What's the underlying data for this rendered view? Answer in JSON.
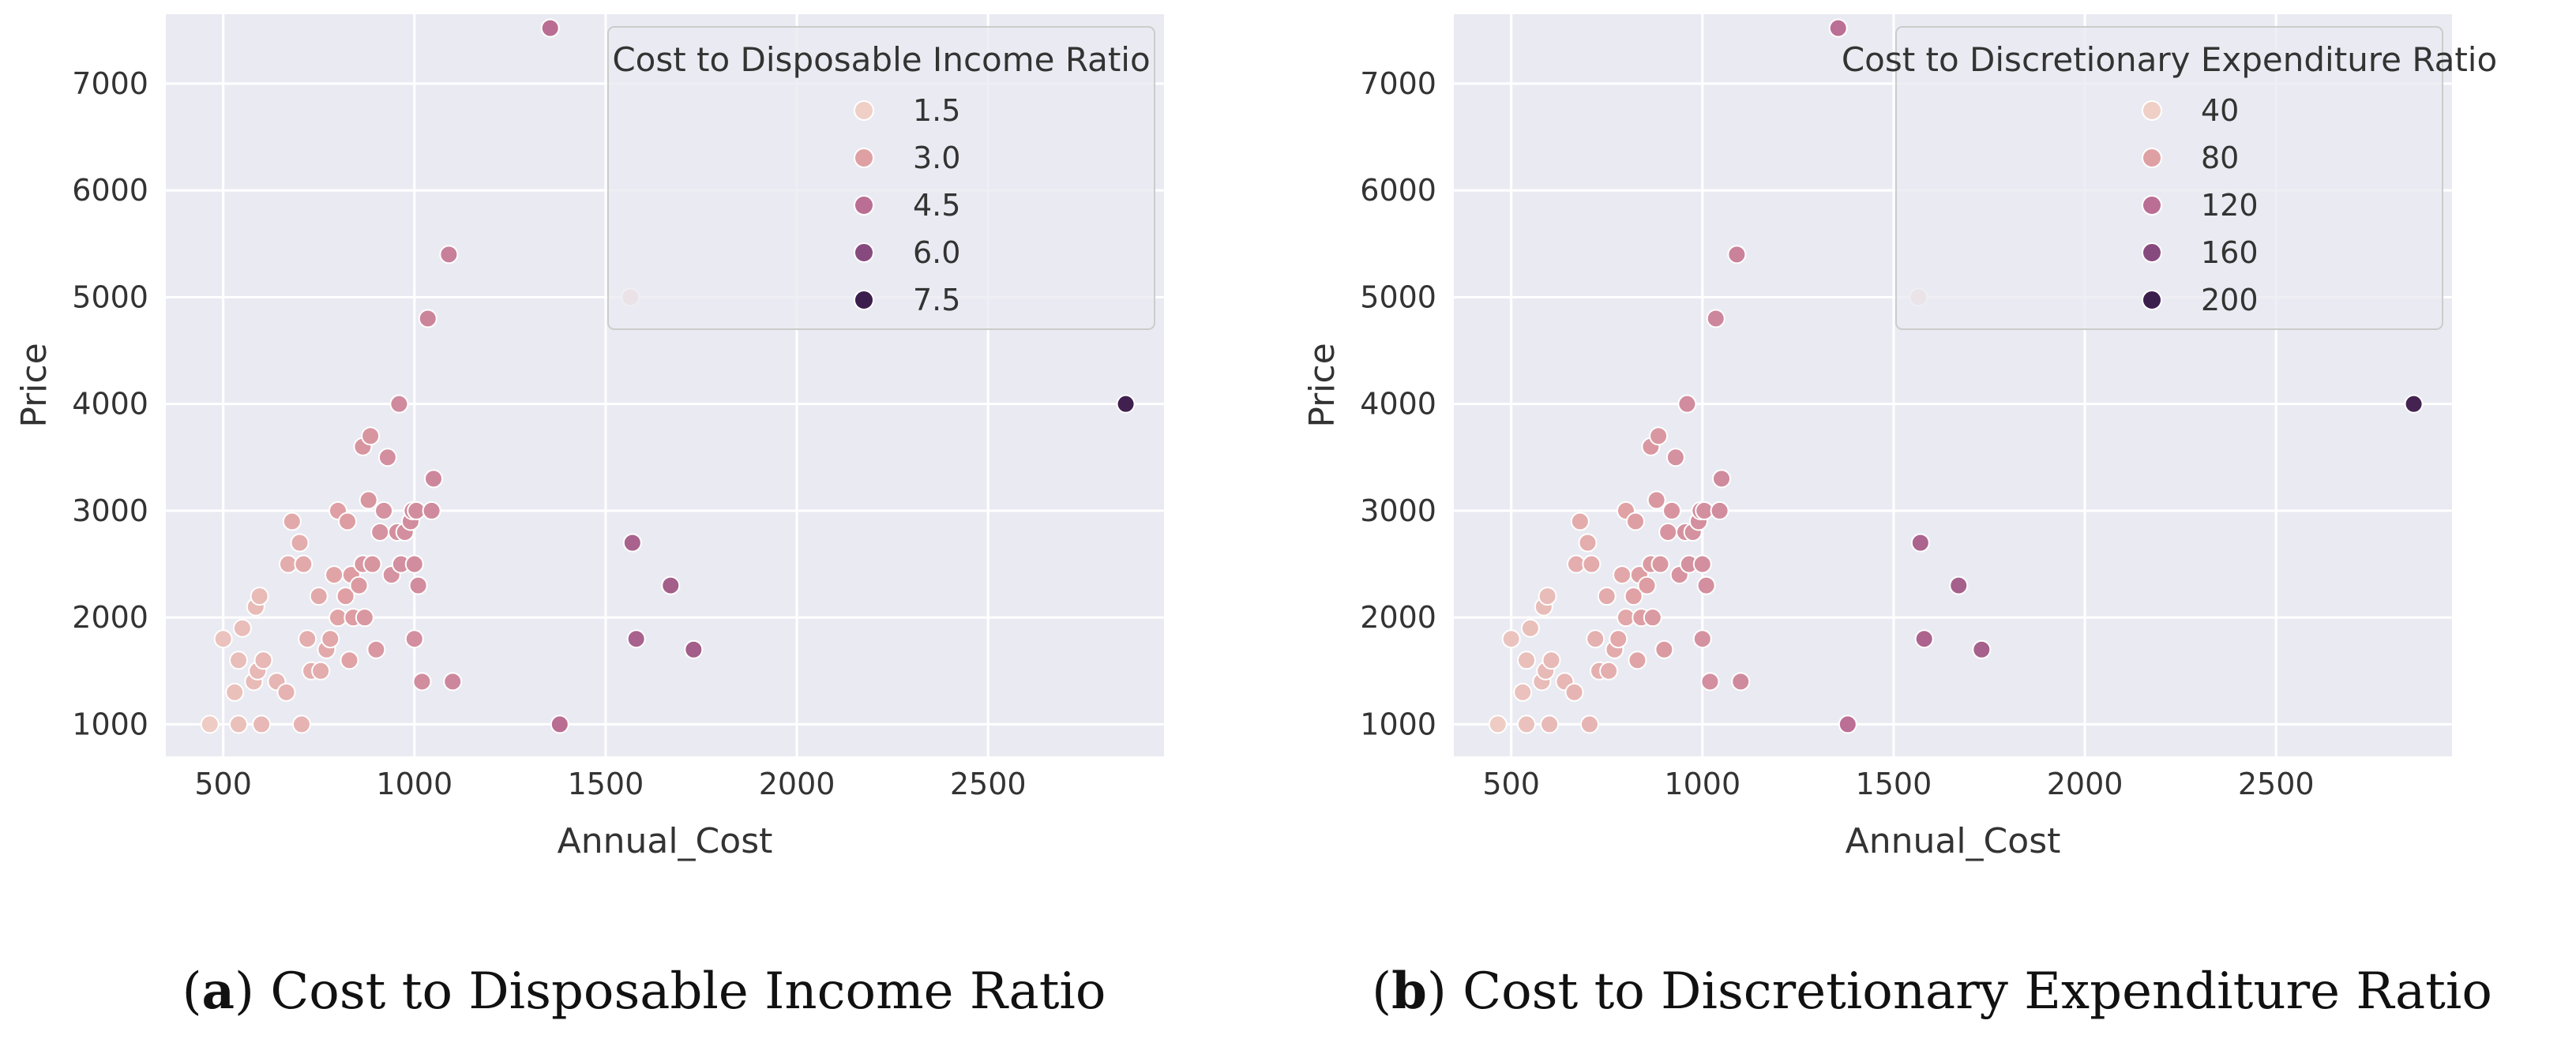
{
  "chart_data": [
    {
      "type": "scatter",
      "panel": "a",
      "caption_letter": "a",
      "caption_text": "Cost to Disposable Income Ratio",
      "xlabel": "Annual_Cost",
      "ylabel": "Price",
      "xlim": [
        350,
        2960
      ],
      "ylim": [
        700,
        7650
      ],
      "xticks": [
        500,
        1000,
        1500,
        2000,
        2500
      ],
      "yticks": [
        1000,
        2000,
        3000,
        4000,
        5000,
        6000,
        7000
      ],
      "grid": true,
      "legend": {
        "title": "Cost to Disposable Income Ratio",
        "placement": "top-right",
        "entries": [
          {
            "label": "1.5",
            "color": "#efcfc6"
          },
          {
            "label": "3.0",
            "color": "#dfa0a4"
          },
          {
            "label": "4.5",
            "color": "#bb6e94"
          },
          {
            "label": "6.0",
            "color": "#874a7f"
          },
          {
            "label": "7.5",
            "color": "#3c1e4c"
          }
        ]
      },
      "hue_range": [
        0.5,
        8.0
      ],
      "points": [
        {
          "x": 465,
          "y": 1000,
          "c": 0.6
        },
        {
          "x": 500,
          "y": 1800,
          "c": 1.0
        },
        {
          "x": 530,
          "y": 1300,
          "c": 1.1
        },
        {
          "x": 540,
          "y": 1000,
          "c": 1.1
        },
        {
          "x": 540,
          "y": 1600,
          "c": 1.2
        },
        {
          "x": 550,
          "y": 1900,
          "c": 1.2
        },
        {
          "x": 580,
          "y": 1400,
          "c": 1.3
        },
        {
          "x": 585,
          "y": 2100,
          "c": 1.3
        },
        {
          "x": 590,
          "y": 1500,
          "c": 1.4
        },
        {
          "x": 595,
          "y": 2200,
          "c": 1.3
        },
        {
          "x": 600,
          "y": 1000,
          "c": 1.4
        },
        {
          "x": 605,
          "y": 1600,
          "c": 1.4
        },
        {
          "x": 640,
          "y": 1400,
          "c": 1.5
        },
        {
          "x": 665,
          "y": 1300,
          "c": 1.6
        },
        {
          "x": 670,
          "y": 2500,
          "c": 1.9
        },
        {
          "x": 680,
          "y": 2900,
          "c": 2.0
        },
        {
          "x": 700,
          "y": 2700,
          "c": 1.9
        },
        {
          "x": 705,
          "y": 1000,
          "c": 1.6
        },
        {
          "x": 710,
          "y": 2500,
          "c": 2.0
        },
        {
          "x": 720,
          "y": 1800,
          "c": 1.8
        },
        {
          "x": 730,
          "y": 1500,
          "c": 1.8
        },
        {
          "x": 750,
          "y": 2200,
          "c": 2.0
        },
        {
          "x": 755,
          "y": 1500,
          "c": 1.9
        },
        {
          "x": 770,
          "y": 1700,
          "c": 2.0
        },
        {
          "x": 780,
          "y": 1800,
          "c": 2.1
        },
        {
          "x": 790,
          "y": 2400,
          "c": 2.2
        },
        {
          "x": 800,
          "y": 3000,
          "c": 2.4
        },
        {
          "x": 800,
          "y": 2000,
          "c": 2.2
        },
        {
          "x": 820,
          "y": 2200,
          "c": 2.4
        },
        {
          "x": 825,
          "y": 2900,
          "c": 2.5
        },
        {
          "x": 830,
          "y": 1600,
          "c": 2.3
        },
        {
          "x": 835,
          "y": 2400,
          "c": 2.5
        },
        {
          "x": 840,
          "y": 2000,
          "c": 2.5
        },
        {
          "x": 855,
          "y": 2300,
          "c": 2.6
        },
        {
          "x": 865,
          "y": 3600,
          "c": 2.8
        },
        {
          "x": 865,
          "y": 2500,
          "c": 2.7
        },
        {
          "x": 870,
          "y": 2000,
          "c": 2.7
        },
        {
          "x": 880,
          "y": 3100,
          "c": 2.8
        },
        {
          "x": 885,
          "y": 3700,
          "c": 2.8
        },
        {
          "x": 890,
          "y": 2500,
          "c": 2.8
        },
        {
          "x": 900,
          "y": 1700,
          "c": 2.7
        },
        {
          "x": 910,
          "y": 2800,
          "c": 2.9
        },
        {
          "x": 920,
          "y": 3000,
          "c": 2.9
        },
        {
          "x": 930,
          "y": 3500,
          "c": 3.0
        },
        {
          "x": 940,
          "y": 2400,
          "c": 2.9
        },
        {
          "x": 955,
          "y": 2800,
          "c": 3.0
        },
        {
          "x": 960,
          "y": 4000,
          "c": 3.2
        },
        {
          "x": 965,
          "y": 2500,
          "c": 3.0
        },
        {
          "x": 975,
          "y": 2800,
          "c": 3.0
        },
        {
          "x": 990,
          "y": 2900,
          "c": 3.1
        },
        {
          "x": 995,
          "y": 3000,
          "c": 3.1
        },
        {
          "x": 1000,
          "y": 1800,
          "c": 3.0
        },
        {
          "x": 1000,
          "y": 2500,
          "c": 3.1
        },
        {
          "x": 1005,
          "y": 3000,
          "c": 3.1
        },
        {
          "x": 1010,
          "y": 2300,
          "c": 3.1
        },
        {
          "x": 1020,
          "y": 1400,
          "c": 3.1
        },
        {
          "x": 1035,
          "y": 4800,
          "c": 3.4
        },
        {
          "x": 1045,
          "y": 3000,
          "c": 3.2
        },
        {
          "x": 1050,
          "y": 3300,
          "c": 3.3
        },
        {
          "x": 1090,
          "y": 5400,
          "c": 3.6
        },
        {
          "x": 1100,
          "y": 1400,
          "c": 3.3
        },
        {
          "x": 1355,
          "y": 7520,
          "c": 4.3
        },
        {
          "x": 1380,
          "y": 1000,
          "c": 4.3
        },
        {
          "x": 1565,
          "y": 5000,
          "c": 1.2
        },
        {
          "x": 1570,
          "y": 2700,
          "c": 4.9
        },
        {
          "x": 1580,
          "y": 1800,
          "c": 4.9
        },
        {
          "x": 1670,
          "y": 2300,
          "c": 5.1
        },
        {
          "x": 1730,
          "y": 1700,
          "c": 5.1
        },
        {
          "x": 2860,
          "y": 4000,
          "c": 7.9
        }
      ]
    },
    {
      "type": "scatter",
      "panel": "b",
      "caption_letter": "b",
      "caption_text": "Cost to Discretionary Expenditure Ratio",
      "xlabel": "Annual_Cost",
      "ylabel": "Price",
      "xlim": [
        350,
        2960
      ],
      "ylim": [
        700,
        7650
      ],
      "xticks": [
        500,
        1000,
        1500,
        2000,
        2500
      ],
      "yticks": [
        1000,
        2000,
        3000,
        4000,
        5000,
        6000,
        7000
      ],
      "grid": true,
      "legend": {
        "title": "Cost to Discretionary Expenditure Ratio",
        "placement": "top-right",
        "entries": [
          {
            "label": "40",
            "color": "#efcfc6"
          },
          {
            "label": "80",
            "color": "#dfa0a4"
          },
          {
            "label": "120",
            "color": "#bb6e94"
          },
          {
            "label": "160",
            "color": "#874a7f"
          },
          {
            "label": "200",
            "color": "#3c1e4c"
          }
        ]
      },
      "hue_range": [
        15,
        210
      ],
      "points": [
        {
          "x": 465,
          "y": 1000,
          "c": 18
        },
        {
          "x": 500,
          "y": 1800,
          "c": 27
        },
        {
          "x": 530,
          "y": 1300,
          "c": 30
        },
        {
          "x": 540,
          "y": 1000,
          "c": 30
        },
        {
          "x": 540,
          "y": 1600,
          "c": 32
        },
        {
          "x": 550,
          "y": 1900,
          "c": 32
        },
        {
          "x": 580,
          "y": 1400,
          "c": 35
        },
        {
          "x": 585,
          "y": 2100,
          "c": 35
        },
        {
          "x": 590,
          "y": 1500,
          "c": 37
        },
        {
          "x": 595,
          "y": 2200,
          "c": 35
        },
        {
          "x": 600,
          "y": 1000,
          "c": 37
        },
        {
          "x": 605,
          "y": 1600,
          "c": 37
        },
        {
          "x": 640,
          "y": 1400,
          "c": 40
        },
        {
          "x": 665,
          "y": 1300,
          "c": 42
        },
        {
          "x": 670,
          "y": 2500,
          "c": 50
        },
        {
          "x": 680,
          "y": 2900,
          "c": 52
        },
        {
          "x": 700,
          "y": 2700,
          "c": 50
        },
        {
          "x": 705,
          "y": 1000,
          "c": 42
        },
        {
          "x": 710,
          "y": 2500,
          "c": 52
        },
        {
          "x": 720,
          "y": 1800,
          "c": 47
        },
        {
          "x": 730,
          "y": 1500,
          "c": 47
        },
        {
          "x": 750,
          "y": 2200,
          "c": 52
        },
        {
          "x": 755,
          "y": 1500,
          "c": 50
        },
        {
          "x": 770,
          "y": 1700,
          "c": 52
        },
        {
          "x": 780,
          "y": 1800,
          "c": 55
        },
        {
          "x": 790,
          "y": 2400,
          "c": 57
        },
        {
          "x": 800,
          "y": 3000,
          "c": 62
        },
        {
          "x": 800,
          "y": 2000,
          "c": 57
        },
        {
          "x": 820,
          "y": 2200,
          "c": 62
        },
        {
          "x": 825,
          "y": 2900,
          "c": 65
        },
        {
          "x": 830,
          "y": 1600,
          "c": 60
        },
        {
          "x": 835,
          "y": 2400,
          "c": 65
        },
        {
          "x": 840,
          "y": 2000,
          "c": 65
        },
        {
          "x": 855,
          "y": 2300,
          "c": 67
        },
        {
          "x": 865,
          "y": 3600,
          "c": 72
        },
        {
          "x": 865,
          "y": 2500,
          "c": 70
        },
        {
          "x": 870,
          "y": 2000,
          "c": 70
        },
        {
          "x": 880,
          "y": 3100,
          "c": 72
        },
        {
          "x": 885,
          "y": 3700,
          "c": 72
        },
        {
          "x": 890,
          "y": 2500,
          "c": 72
        },
        {
          "x": 900,
          "y": 1700,
          "c": 70
        },
        {
          "x": 910,
          "y": 2800,
          "c": 75
        },
        {
          "x": 920,
          "y": 3000,
          "c": 75
        },
        {
          "x": 930,
          "y": 3500,
          "c": 78
        },
        {
          "x": 940,
          "y": 2400,
          "c": 75
        },
        {
          "x": 955,
          "y": 2800,
          "c": 78
        },
        {
          "x": 960,
          "y": 4000,
          "c": 83
        },
        {
          "x": 965,
          "y": 2500,
          "c": 78
        },
        {
          "x": 975,
          "y": 2800,
          "c": 78
        },
        {
          "x": 990,
          "y": 2900,
          "c": 80
        },
        {
          "x": 995,
          "y": 3000,
          "c": 80
        },
        {
          "x": 1000,
          "y": 1800,
          "c": 78
        },
        {
          "x": 1000,
          "y": 2500,
          "c": 80
        },
        {
          "x": 1005,
          "y": 3000,
          "c": 80
        },
        {
          "x": 1010,
          "y": 2300,
          "c": 80
        },
        {
          "x": 1020,
          "y": 1400,
          "c": 80
        },
        {
          "x": 1035,
          "y": 4800,
          "c": 88
        },
        {
          "x": 1045,
          "y": 3000,
          "c": 83
        },
        {
          "x": 1050,
          "y": 3300,
          "c": 85
        },
        {
          "x": 1090,
          "y": 5400,
          "c": 93
        },
        {
          "x": 1100,
          "y": 1400,
          "c": 85
        },
        {
          "x": 1355,
          "y": 7520,
          "c": 112
        },
        {
          "x": 1380,
          "y": 1000,
          "c": 112
        },
        {
          "x": 1565,
          "y": 5000,
          "c": 30
        },
        {
          "x": 1570,
          "y": 2700,
          "c": 127
        },
        {
          "x": 1580,
          "y": 1800,
          "c": 127
        },
        {
          "x": 1670,
          "y": 2300,
          "c": 132
        },
        {
          "x": 1730,
          "y": 1700,
          "c": 132
        },
        {
          "x": 2860,
          "y": 4000,
          "c": 205
        }
      ]
    }
  ]
}
